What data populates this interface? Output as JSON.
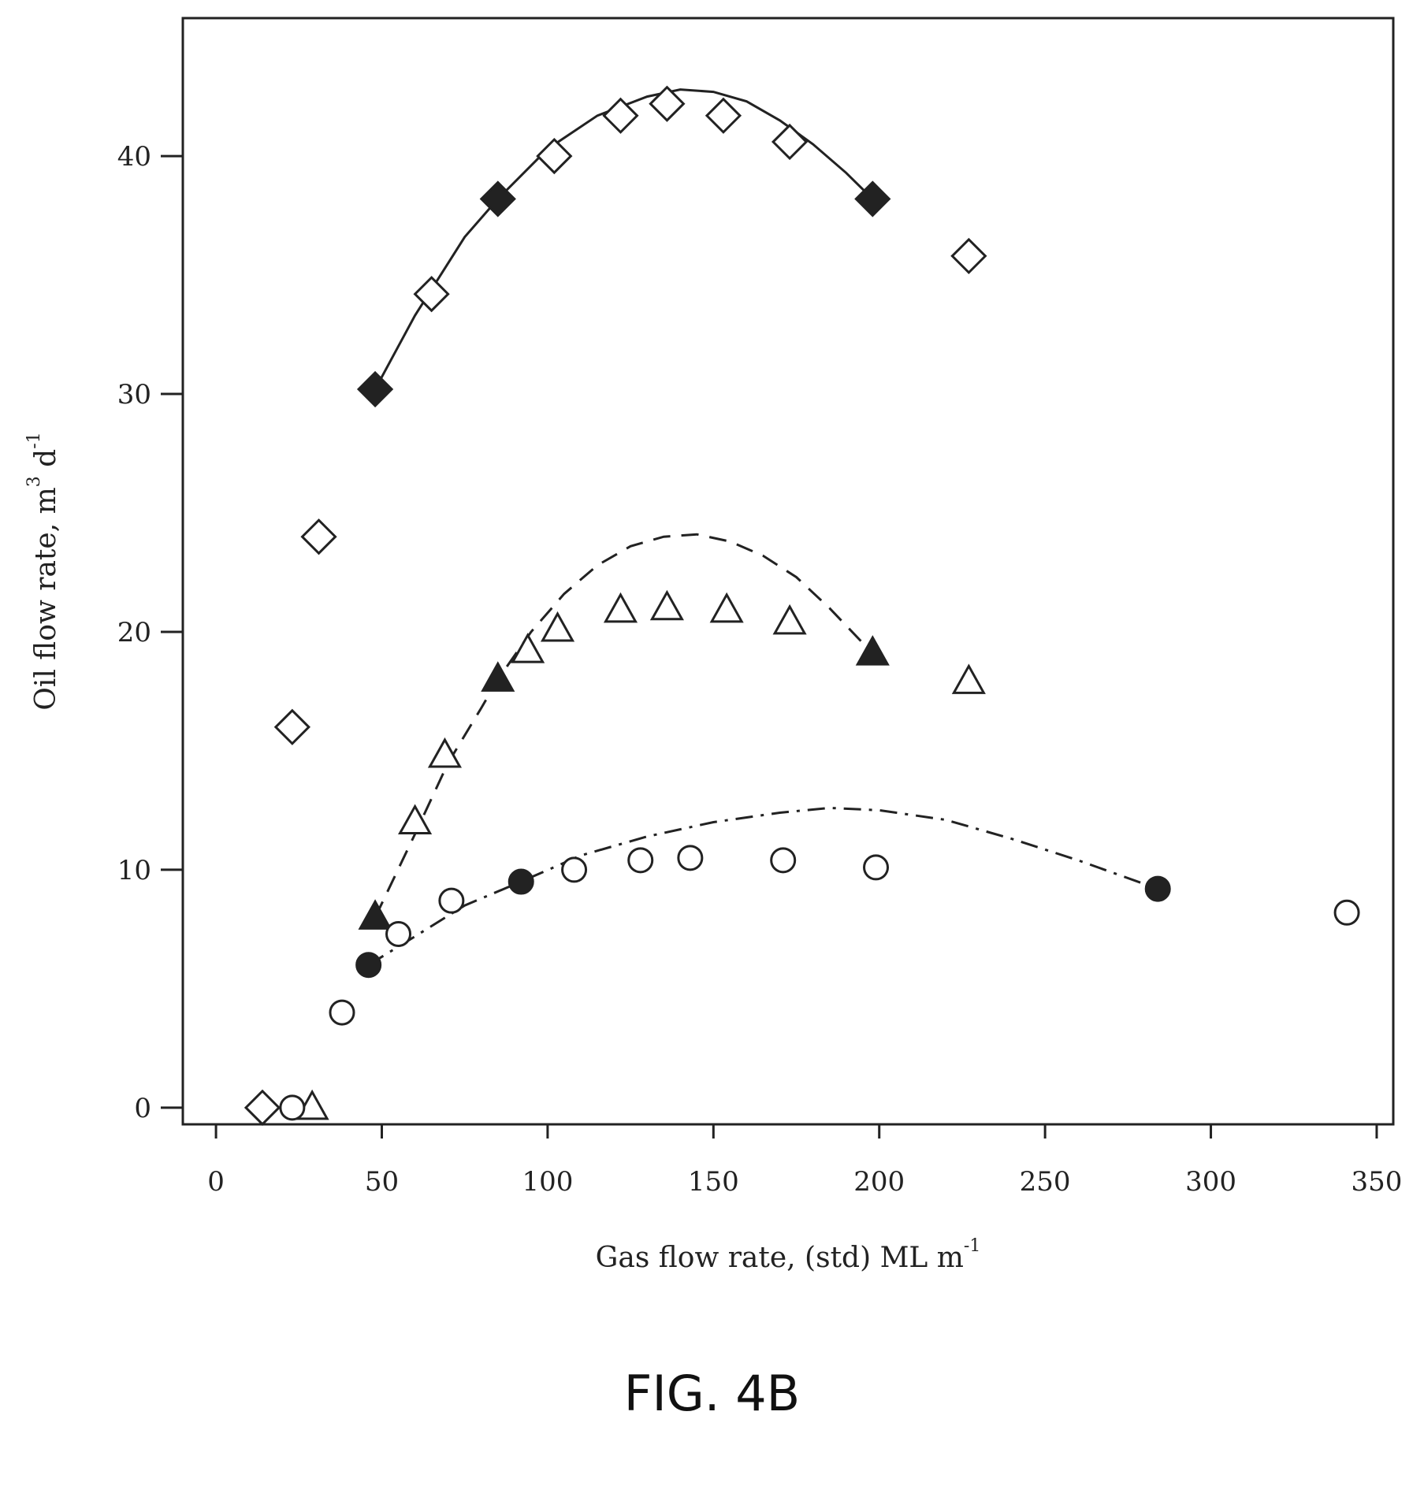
{
  "caption": "FIG. 4B",
  "chart_data": {
    "type": "scatter",
    "title": "",
    "xlabel": {
      "main": "Gas flow rate, (std) ML m",
      "sup": "-1"
    },
    "ylabel": {
      "main": "Oil flow rate, m",
      "sup1": "3",
      "mid": " d",
      "sup2": "-1"
    },
    "xlim": [
      -10,
      355
    ],
    "ylim": [
      -0.7,
      45.8
    ],
    "x_ticks": [
      0,
      50,
      100,
      150,
      200,
      250,
      300,
      350
    ],
    "y_ticks": [
      0,
      10,
      20,
      30,
      40
    ],
    "grid": false,
    "series": [
      {
        "marker": "diamond-open",
        "points": [
          [
            14,
            0
          ],
          [
            23,
            16
          ],
          [
            31,
            24
          ],
          [
            65,
            34.2
          ],
          [
            102,
            40
          ],
          [
            122,
            41.7
          ],
          [
            136,
            42.2
          ],
          [
            153,
            41.7
          ],
          [
            173,
            40.6
          ],
          [
            227,
            35.8
          ]
        ]
      },
      {
        "marker": "diamond-filled",
        "points": [
          [
            48,
            30.2
          ],
          [
            85,
            38.2
          ],
          [
            198,
            38.2
          ]
        ]
      },
      {
        "marker": "triangle-open",
        "points": [
          [
            29,
            0
          ],
          [
            60,
            12
          ],
          [
            69,
            14.8
          ],
          [
            94,
            19.2
          ],
          [
            103,
            20.1
          ],
          [
            122,
            20.9
          ],
          [
            136,
            21
          ],
          [
            154,
            20.9
          ],
          [
            173,
            20.4
          ],
          [
            227,
            17.9
          ]
        ]
      },
      {
        "marker": "triangle-filled",
        "points": [
          [
            48,
            8
          ],
          [
            85,
            18
          ],
          [
            198,
            19.1
          ]
        ]
      },
      {
        "marker": "circle-open",
        "points": [
          [
            23,
            0
          ],
          [
            38,
            4
          ],
          [
            55,
            7.3
          ],
          [
            71,
            8.7
          ],
          [
            108,
            10
          ],
          [
            128,
            10.4
          ],
          [
            143,
            10.5
          ],
          [
            171,
            10.4
          ],
          [
            199,
            10.1
          ],
          [
            341,
            8.2
          ]
        ]
      },
      {
        "marker": "circle-filled",
        "points": [
          [
            46,
            6
          ],
          [
            92,
            9.5
          ],
          [
            284,
            9.2
          ]
        ]
      }
    ],
    "fit_curves": [
      {
        "style": "solid",
        "points": [
          [
            48,
            30.2
          ],
          [
            60,
            33.3
          ],
          [
            75,
            36.6
          ],
          [
            85,
            38.2
          ],
          [
            100,
            40.3
          ],
          [
            115,
            41.7
          ],
          [
            130,
            42.5
          ],
          [
            140,
            42.8
          ],
          [
            150,
            42.7
          ],
          [
            160,
            42.3
          ],
          [
            170,
            41.5
          ],
          [
            180,
            40.5
          ],
          [
            190,
            39.3
          ],
          [
            198,
            38.2
          ]
        ]
      },
      {
        "style": "dashed",
        "points": [
          [
            48,
            8
          ],
          [
            60,
            11.5
          ],
          [
            70,
            14.5
          ],
          [
            80,
            16.8
          ],
          [
            85,
            18
          ],
          [
            95,
            20
          ],
          [
            105,
            21.6
          ],
          [
            115,
            22.8
          ],
          [
            125,
            23.6
          ],
          [
            135,
            24
          ],
          [
            145,
            24.1
          ],
          [
            155,
            23.8
          ],
          [
            165,
            23.2
          ],
          [
            175,
            22.3
          ],
          [
            185,
            21
          ],
          [
            198,
            19.1
          ]
        ]
      },
      {
        "style": "dash-dot",
        "points": [
          [
            46,
            6
          ],
          [
            60,
            7.2
          ],
          [
            75,
            8.5
          ],
          [
            92,
            9.5
          ],
          [
            110,
            10.6
          ],
          [
            130,
            11.4
          ],
          [
            150,
            12
          ],
          [
            170,
            12.4
          ],
          [
            185,
            12.6
          ],
          [
            200,
            12.5
          ],
          [
            220,
            12.1
          ],
          [
            240,
            11.3
          ],
          [
            260,
            10.4
          ],
          [
            284,
            9.2
          ]
        ]
      }
    ]
  }
}
